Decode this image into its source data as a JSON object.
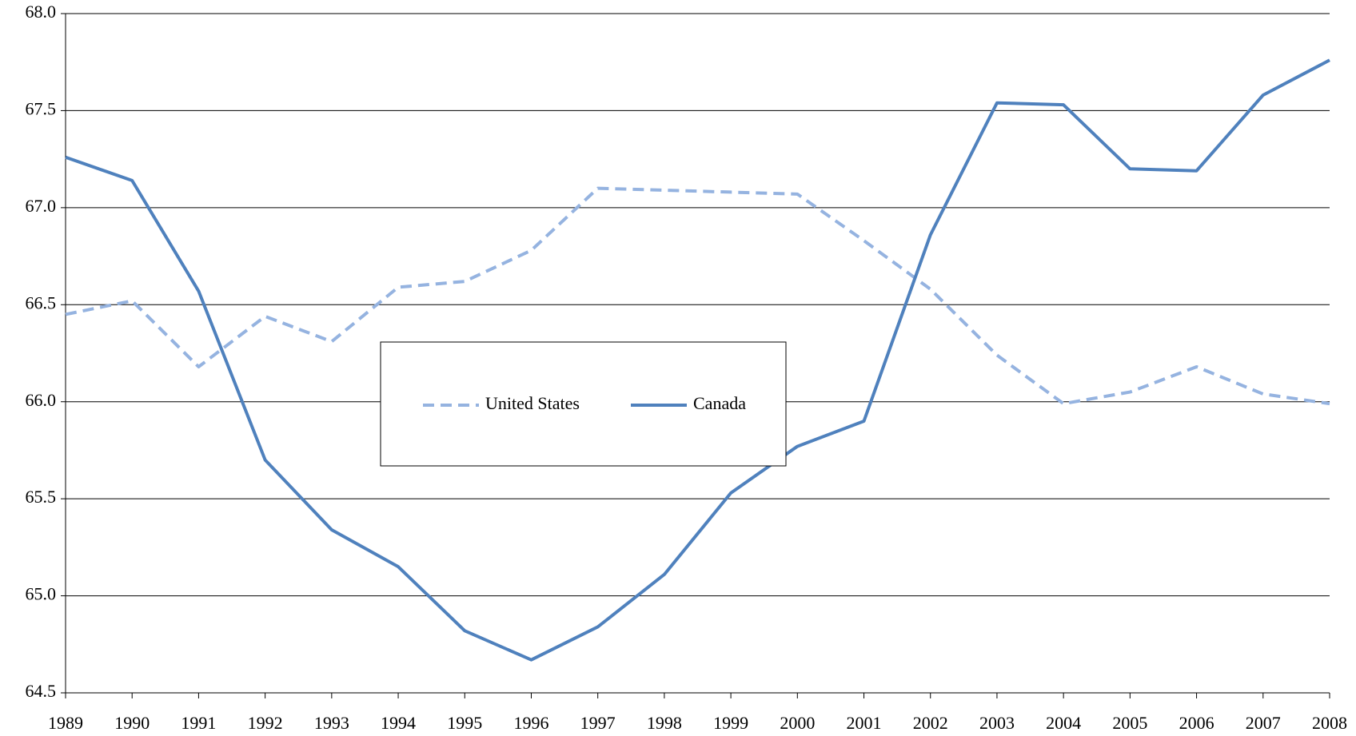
{
  "chart_data": {
    "type": "line",
    "categories": [
      "1989",
      "1990",
      "1991",
      "1992",
      "1993",
      "1994",
      "1995",
      "1996",
      "1997",
      "1998",
      "1999",
      "2000",
      "2001",
      "2002",
      "2003",
      "2004",
      "2005",
      "2006",
      "2007",
      "2008"
    ],
    "series": [
      {
        "name": "United States",
        "color": "#95b3e0",
        "dashed": true,
        "values": [
          66.45,
          66.52,
          66.18,
          66.44,
          66.31,
          66.59,
          66.62,
          66.78,
          67.1,
          67.09,
          67.08,
          67.07,
          66.83,
          66.58,
          66.24,
          65.99,
          66.05,
          66.18,
          66.04,
          65.99
        ]
      },
      {
        "name": "Canada",
        "color": "#4f81bd",
        "dashed": false,
        "values": [
          67.26,
          67.14,
          66.57,
          65.7,
          65.34,
          65.15,
          64.82,
          64.67,
          64.84,
          65.11,
          65.53,
          65.77,
          65.9,
          66.86,
          67.54,
          67.53,
          67.2,
          67.19,
          67.58,
          67.76
        ]
      }
    ],
    "ylim": [
      64.5,
      68.0
    ],
    "yticks": [
      {
        "value": 64.5,
        "label": "64.5"
      },
      {
        "value": 65,
        "label": "65.0"
      },
      {
        "value": 65.5,
        "label": "65.5"
      },
      {
        "value": 66,
        "label": "66.0"
      },
      {
        "value": 66.5,
        "label": "66.5"
      },
      {
        "value": 67,
        "label": "67.0"
      },
      {
        "value": 67.5,
        "label": "67.5"
      },
      {
        "value": 68,
        "label": "68.0"
      }
    ],
    "grid": true,
    "legend": "center"
  }
}
